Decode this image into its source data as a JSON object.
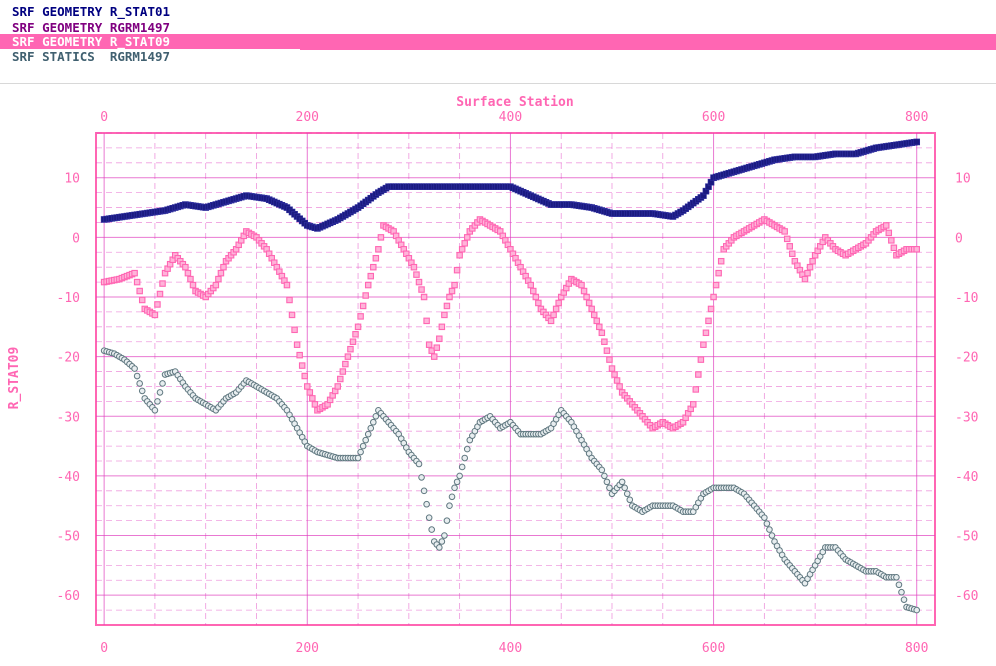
{
  "legend": [
    {
      "label": "SRF GEOMETRY R_STAT01",
      "color": "#000080",
      "bg": "#ffffff",
      "selected": false
    },
    {
      "label": "SRF GEOMETRY RGRM1497",
      "color": "#800080",
      "bg": "#ffffff",
      "selected": false
    },
    {
      "label": "SRF GEOMETRY R_STAT09",
      "color": "#ffffff",
      "bg": "#ff66b3",
      "selected": true
    },
    {
      "label": "SRF STATICS  RGRM1497",
      "color": "#406070",
      "bg": "#ffffff",
      "selected": false
    }
  ],
  "colors": {
    "axis": "#ff66b3",
    "grid": "#e040c0",
    "series_navy": "#1a1a80",
    "series_pink": "#ff66b3",
    "series_gray": "#607880"
  },
  "chart_data": {
    "type": "scatter",
    "xlabel": "Surface Station",
    "ylabel": "R_STAT09",
    "xlim": [
      -8,
      818
    ],
    "ylim": [
      -65,
      17.5
    ],
    "xticks": [
      0,
      200,
      400,
      600,
      800
    ],
    "yticks": [
      10,
      0,
      -10,
      -20,
      -30,
      -40,
      -50,
      -60
    ],
    "grid": true,
    "series": [
      {
        "marker": "square-filled",
        "color": "#1a1a80",
        "x": [
          0,
          20,
          40,
          60,
          80,
          100,
          120,
          140,
          160,
          180,
          200,
          210,
          230,
          250,
          270,
          280,
          300,
          340,
          380,
          400,
          420,
          440,
          460,
          480,
          500,
          520,
          540,
          560,
          570,
          590,
          600,
          620,
          640,
          660,
          680,
          700,
          720,
          740,
          760,
          780,
          800
        ],
        "y": [
          3,
          3.5,
          4,
          4.5,
          5.5,
          5,
          6,
          7,
          6.5,
          5,
          2,
          1.5,
          3,
          5,
          7.5,
          8.5,
          8.5,
          8.5,
          8.5,
          8.5,
          7,
          5.5,
          5.5,
          5,
          4,
          4,
          4,
          3.5,
          4.5,
          7,
          10,
          11,
          12,
          13,
          13.5,
          13.5,
          14,
          14,
          15,
          15.5,
          16
        ]
      },
      {
        "marker": "square-open",
        "color": "#ff66b3",
        "x": [
          0,
          15,
          30,
          40,
          50,
          60,
          70,
          80,
          90,
          100,
          110,
          120,
          130,
          140,
          150,
          160,
          170,
          180,
          190,
          200,
          210,
          220,
          230,
          240,
          250,
          260,
          270,
          275,
          285,
          295,
          305,
          315,
          320,
          325,
          330,
          335,
          340,
          345,
          350,
          360,
          370,
          380,
          390,
          400,
          410,
          420,
          430,
          440,
          450,
          460,
          470,
          480,
          490,
          500,
          510,
          520,
          530,
          540,
          550,
          560,
          570,
          580,
          590,
          600,
          610,
          620,
          630,
          640,
          650,
          660,
          670,
          680,
          690,
          700,
          710,
          720,
          730,
          740,
          750,
          760,
          770,
          780,
          790,
          800
        ],
        "y": [
          -7.5,
          -7,
          -6,
          -12,
          -13,
          -6,
          -3,
          -5,
          -9,
          -10,
          -8,
          -4,
          -2,
          1,
          0,
          -2,
          -5,
          -8,
          -18,
          -25,
          -29,
          -28,
          -25,
          -20,
          -15,
          -8,
          -2,
          2,
          1,
          -2,
          -5,
          -10,
          -18,
          -20,
          -17,
          -13,
          -10,
          -8,
          -3,
          1,
          3,
          2,
          1,
          -2,
          -5,
          -8,
          -12,
          -14,
          -10,
          -7,
          -8,
          -12,
          -16,
          -22,
          -26,
          -28,
          -30,
          -32,
          -31,
          -32,
          -31,
          -28,
          -18,
          -10,
          -2,
          0,
          1,
          2,
          3,
          2,
          1,
          -4,
          -7,
          -3,
          0,
          -2,
          -3,
          -2,
          -1,
          1,
          2,
          -3,
          -2,
          -2
        ]
      },
      {
        "marker": "circle-open",
        "color": "#607880",
        "x": [
          0,
          10,
          20,
          30,
          40,
          50,
          60,
          70,
          80,
          90,
          100,
          110,
          120,
          130,
          140,
          150,
          160,
          170,
          180,
          190,
          200,
          210,
          220,
          230,
          240,
          250,
          260,
          270,
          280,
          290,
          300,
          310,
          320,
          325,
          330,
          335,
          340,
          345,
          350,
          360,
          370,
          380,
          390,
          400,
          410,
          420,
          430,
          440,
          450,
          460,
          470,
          480,
          490,
          500,
          510,
          520,
          530,
          540,
          550,
          560,
          570,
          580,
          590,
          600,
          610,
          620,
          630,
          640,
          650,
          660,
          670,
          680,
          690,
          700,
          710,
          720,
          730,
          740,
          750,
          760,
          770,
          780,
          790,
          800
        ],
        "y": [
          -19,
          -19.5,
          -20.5,
          -22,
          -27,
          -29,
          -23,
          -22.5,
          -25,
          -27,
          -28,
          -29,
          -27,
          -26,
          -24,
          -25,
          -26,
          -27,
          -29,
          -32,
          -35,
          -36,
          -36.5,
          -37,
          -37,
          -37,
          -33,
          -29,
          -31,
          -33,
          -36,
          -38,
          -47,
          -51,
          -52,
          -50,
          -45,
          -42,
          -40,
          -34,
          -31,
          -30,
          -32,
          -31,
          -33,
          -33,
          -33,
          -32,
          -29,
          -31,
          -34,
          -37,
          -39,
          -43,
          -41,
          -45,
          -46,
          -45,
          -45,
          -45,
          -46,
          -46,
          -43,
          -42,
          -42,
          -42,
          -43,
          -45,
          -47,
          -51,
          -54,
          -56,
          -58,
          -55,
          -52,
          -52,
          -54,
          -55,
          -56,
          -56,
          -57,
          -57,
          -62,
          -62.5
        ]
      }
    ]
  }
}
